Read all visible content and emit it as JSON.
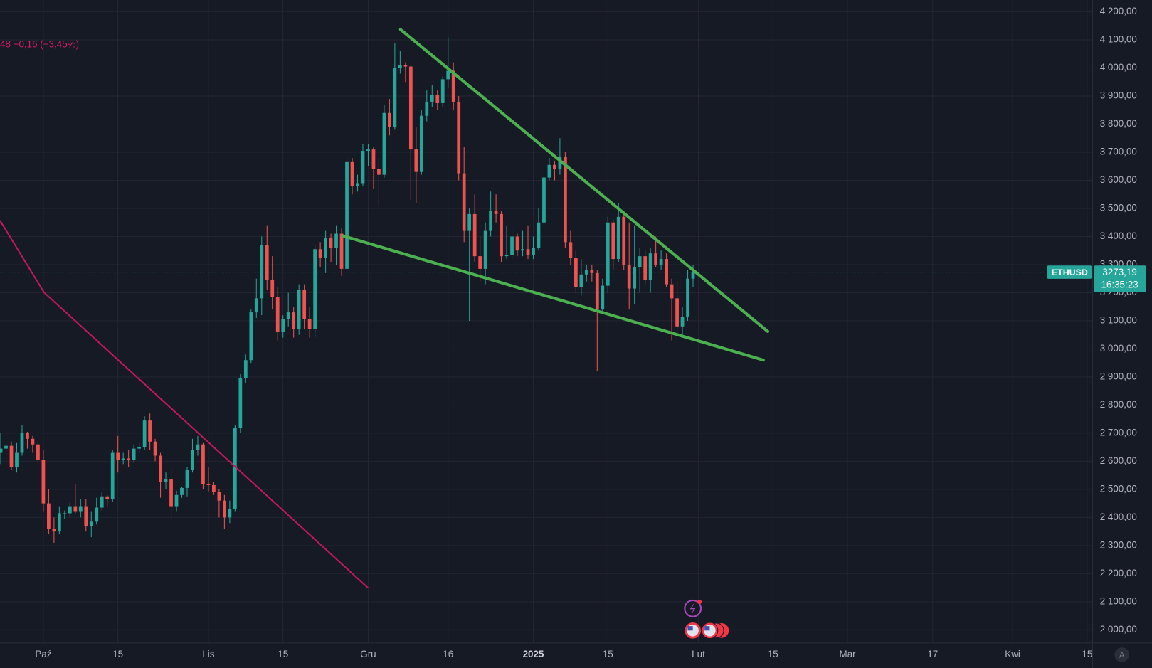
{
  "chart_data": {
    "type": "candlestick",
    "symbol": "ETHUSD",
    "header_text": "48  −0,16 (−3,45%)",
    "countdown": "16:35:23",
    "last_price": {
      "value": 3273.19,
      "label": "3273,19"
    },
    "up_color": "#26a69a",
    "down_color": "#ef5350",
    "x": [
      "2024-09-23",
      "2024-09-24",
      "2024-09-25",
      "2024-09-26",
      "2024-09-27",
      "2024-09-28",
      "2024-09-29",
      "2024-09-30",
      "2024-10-01",
      "2024-10-02",
      "2024-10-03",
      "2024-10-04",
      "2024-10-05",
      "2024-10-06",
      "2024-10-07",
      "2024-10-08",
      "2024-10-09",
      "2024-10-10",
      "2024-10-11",
      "2024-10-12",
      "2024-10-13",
      "2024-10-14",
      "2024-10-15",
      "2024-10-16",
      "2024-10-17",
      "2024-10-18",
      "2024-10-19",
      "2024-10-20",
      "2024-10-21",
      "2024-10-22",
      "2024-10-23",
      "2024-10-24",
      "2024-10-25",
      "2024-10-26",
      "2024-10-27",
      "2024-10-28",
      "2024-10-29",
      "2024-10-30",
      "2024-10-31",
      "2024-11-01",
      "2024-11-02",
      "2024-11-03",
      "2024-11-04",
      "2024-11-05",
      "2024-11-06",
      "2024-11-07",
      "2024-11-08",
      "2024-11-09",
      "2024-11-10",
      "2024-11-11",
      "2024-11-12",
      "2024-11-13",
      "2024-11-14",
      "2024-11-15",
      "2024-11-16",
      "2024-11-17",
      "2024-11-18",
      "2024-11-19",
      "2024-11-20",
      "2024-11-21",
      "2024-11-22",
      "2024-11-23",
      "2024-11-24",
      "2024-11-25",
      "2024-11-26",
      "2024-11-27",
      "2024-11-28",
      "2024-11-29",
      "2024-11-30",
      "2024-12-01",
      "2024-12-02",
      "2024-12-03",
      "2024-12-04",
      "2024-12-05",
      "2024-12-06",
      "2024-12-07",
      "2024-12-08",
      "2024-12-09",
      "2024-12-10",
      "2024-12-11",
      "2024-12-12",
      "2024-12-13",
      "2024-12-14",
      "2024-12-15",
      "2024-12-16",
      "2024-12-17",
      "2024-12-18",
      "2024-12-19",
      "2024-12-20",
      "2024-12-21",
      "2024-12-22",
      "2024-12-23",
      "2024-12-24",
      "2024-12-25",
      "2024-12-26",
      "2024-12-27",
      "2024-12-28",
      "2024-12-29",
      "2024-12-30",
      "2024-12-31",
      "2025-01-01",
      "2025-01-02",
      "2025-01-03",
      "2025-01-04",
      "2025-01-05",
      "2025-01-06",
      "2025-01-07",
      "2025-01-08",
      "2025-01-09",
      "2025-01-10",
      "2025-01-11",
      "2025-01-12",
      "2025-01-13",
      "2025-01-14",
      "2025-01-15",
      "2025-01-16",
      "2025-01-17",
      "2025-01-18",
      "2025-01-19",
      "2025-01-20",
      "2025-01-21",
      "2025-01-22",
      "2025-01-23",
      "2025-01-24",
      "2025-01-25",
      "2025-01-26",
      "2025-01-27",
      "2025-01-28",
      "2025-01-29",
      "2025-01-30",
      "2025-01-31"
    ],
    "open": [
      2630,
      2645,
      2655,
      2580,
      2630,
      2700,
      2680,
      2660,
      2605,
      2450,
      2360,
      2350,
      2415,
      2415,
      2440,
      2420,
      2440,
      2370,
      2385,
      2435,
      2475,
      2465,
      2630,
      2605,
      2610,
      2605,
      2645,
      2650,
      2745,
      2670,
      2620,
      2525,
      2535,
      2440,
      2480,
      2505,
      2570,
      2640,
      2660,
      2520,
      2515,
      2490,
      2460,
      2400,
      2430,
      2720,
      2895,
      2960,
      3130,
      3180,
      3370,
      3245,
      3185,
      3060,
      3105,
      3130,
      3070,
      3210,
      3105,
      3070,
      3355,
      3325,
      3395,
      3360,
      3410,
      3285,
      3665,
      3580,
      3590,
      3705,
      3710,
      3640,
      3620,
      3840,
      3790,
      4000,
      4010,
      4005,
      3710,
      3630,
      3830,
      3880,
      3905,
      3875,
      3960,
      3990,
      3880,
      3625,
      3420,
      3480,
      3330,
      3285,
      3420,
      3490,
      3480,
      3330,
      3335,
      3400,
      3350,
      3355,
      3335,
      3360,
      3450,
      3610,
      3655,
      3640,
      3685,
      3380,
      3325,
      3220,
      3265,
      3280,
      3270,
      3140,
      3225,
      3450,
      3320,
      3470,
      3300,
      3215,
      3290,
      3330,
      3245,
      3340,
      3300,
      3320,
      3230,
      3180,
      3080,
      3115,
      3250
    ],
    "high": [
      2700,
      2675,
      2670,
      2665,
      2730,
      2705,
      2690,
      2665,
      2640,
      2500,
      2400,
      2440,
      2425,
      2455,
      2520,
      2465,
      2465,
      2420,
      2470,
      2490,
      2480,
      2640,
      2690,
      2630,
      2640,
      2660,
      2665,
      2760,
      2770,
      2680,
      2630,
      2560,
      2570,
      2495,
      2510,
      2580,
      2680,
      2690,
      2665,
      2580,
      2525,
      2500,
      2480,
      2460,
      2730,
      2910,
      2980,
      3140,
      3250,
      3400,
      3440,
      3330,
      3220,
      3120,
      3200,
      3150,
      3230,
      3230,
      3150,
      3370,
      3380,
      3420,
      3410,
      3440,
      3430,
      3690,
      3680,
      3620,
      3730,
      3730,
      3720,
      3680,
      3870,
      3890,
      4090,
      4060,
      4020,
      4010,
      3790,
      3850,
      3920,
      3940,
      3920,
      3970,
      4110,
      4020,
      3900,
      3720,
      3500,
      3550,
      3400,
      3450,
      3560,
      3550,
      3490,
      3440,
      3420,
      3410,
      3420,
      3440,
      3400,
      3500,
      3620,
      3680,
      3670,
      3750,
      3700,
      3420,
      3350,
      3320,
      3300,
      3300,
      3280,
      3250,
      3470,
      3460,
      3520,
      3480,
      3450,
      3440,
      3360,
      3350,
      3360,
      3400,
      3350,
      3340,
      3250,
      3240,
      3150,
      3280,
      3300
    ],
    "low": [
      2590,
      2590,
      2570,
      2560,
      2620,
      2645,
      2630,
      2590,
      2420,
      2340,
      2310,
      2340,
      2395,
      2400,
      2415,
      2400,
      2350,
      2330,
      2375,
      2425,
      2440,
      2455,
      2560,
      2590,
      2580,
      2595,
      2630,
      2640,
      2640,
      2600,
      2470,
      2500,
      2390,
      2420,
      2470,
      2475,
      2560,
      2620,
      2500,
      2490,
      2480,
      2400,
      2360,
      2380,
      2420,
      2700,
      2880,
      2950,
      3110,
      3120,
      3210,
      3140,
      3030,
      3040,
      3080,
      3040,
      3050,
      3070,
      3040,
      3040,
      3290,
      3270,
      3310,
      3300,
      3260,
      3280,
      3550,
      3560,
      3580,
      3650,
      3570,
      3510,
      3610,
      3760,
      3780,
      3980,
      3950,
      3530,
      3520,
      3620,
      3810,
      3860,
      3850,
      3860,
      3930,
      3850,
      3600,
      3380,
      3100,
      3310,
      3240,
      3230,
      3400,
      3450,
      3310,
      3320,
      3320,
      3330,
      3330,
      3320,
      3320,
      3350,
      3440,
      3600,
      3600,
      3620,
      3360,
      3300,
      3200,
      3190,
      3240,
      3240,
      2920,
      3130,
      3200,
      3280,
      3310,
      3280,
      3140,
      3160,
      3200,
      3230,
      3200,
      3290,
      3280,
      3220,
      3030,
      3050,
      3050,
      3100,
      3220
    ],
    "close": [
      2645,
      2655,
      2580,
      2630,
      2700,
      2680,
      2660,
      2605,
      2450,
      2360,
      2350,
      2415,
      2415,
      2440,
      2420,
      2440,
      2370,
      2385,
      2435,
      2475,
      2465,
      2630,
      2605,
      2610,
      2605,
      2645,
      2650,
      2745,
      2670,
      2620,
      2525,
      2535,
      2440,
      2480,
      2505,
      2570,
      2640,
      2660,
      2520,
      2515,
      2490,
      2460,
      2400,
      2430,
      2720,
      2895,
      2960,
      3130,
      3180,
      3370,
      3245,
      3185,
      3060,
      3105,
      3130,
      3070,
      3210,
      3105,
      3070,
      3355,
      3325,
      3395,
      3360,
      3410,
      3285,
      3665,
      3580,
      3590,
      3705,
      3710,
      3640,
      3620,
      3840,
      3790,
      4000,
      4010,
      4005,
      3710,
      3630,
      3830,
      3880,
      3905,
      3875,
      3960,
      3990,
      3880,
      3625,
      3420,
      3480,
      3330,
      3285,
      3420,
      3490,
      3480,
      3330,
      3335,
      3400,
      3350,
      3355,
      3335,
      3360,
      3450,
      3610,
      3655,
      3640,
      3685,
      3380,
      3325,
      3220,
      3265,
      3280,
      3270,
      3140,
      3225,
      3450,
      3320,
      3470,
      3300,
      3215,
      3290,
      3330,
      3245,
      3340,
      3300,
      3320,
      3230,
      3180,
      3080,
      3115,
      3250,
      3273.19
    ],
    "xlim": [
      "2024-09-23",
      "2025-04-16"
    ],
    "xticks": [
      {
        "value": "2024-10-01",
        "label": "Paź"
      },
      {
        "value": "2024-10-15",
        "label": "15"
      },
      {
        "value": "2024-11-01",
        "label": "Lis"
      },
      {
        "value": "2024-11-15",
        "label": "15"
      },
      {
        "value": "2024-12-01",
        "label": "Gru"
      },
      {
        "value": "2024-12-16",
        "label": "16"
      },
      {
        "value": "2025-01-01",
        "label": "2025"
      },
      {
        "value": "2025-01-15",
        "label": "15"
      },
      {
        "value": "2025-02-01",
        "label": "Lut"
      },
      {
        "value": "2025-02-15",
        "label": "15"
      },
      {
        "value": "2025-03-01",
        "label": "Mar"
      },
      {
        "value": "2025-03-17",
        "label": "17"
      },
      {
        "value": "2025-04-01",
        "label": "Kwi"
      },
      {
        "value": "2025-04-15",
        "label": "15"
      }
    ],
    "ylim": [
      1953,
      4242
    ],
    "yticks": [
      {
        "value": 2000,
        "label": "2 000,00"
      },
      {
        "value": 2100,
        "label": "2 100,00"
      },
      {
        "value": 2200,
        "label": "2 200,00"
      },
      {
        "value": 2300,
        "label": "2 300,00"
      },
      {
        "value": 2400,
        "label": "2 400,00"
      },
      {
        "value": 2500,
        "label": "2 500,00"
      },
      {
        "value": 2600,
        "label": "2 600,00"
      },
      {
        "value": 2700,
        "label": "2 700,00"
      },
      {
        "value": 2800,
        "label": "2 800,00"
      },
      {
        "value": 2900,
        "label": "2 900,00"
      },
      {
        "value": 3000,
        "label": "3 000,00"
      },
      {
        "value": 3100,
        "label": "3 100,00"
      },
      {
        "value": 3200,
        "label": "3 200,00"
      },
      {
        "value": 3300,
        "label": "3 300,00"
      },
      {
        "value": 3400,
        "label": "3 400,00"
      },
      {
        "value": 3500,
        "label": "3 500,00"
      },
      {
        "value": 3600,
        "label": "3 600,00"
      },
      {
        "value": 3700,
        "label": "3 700,00"
      },
      {
        "value": 3800,
        "label": "3 800,00"
      },
      {
        "value": 3900,
        "label": "3 900,00"
      },
      {
        "value": 4000,
        "label": "4 000,00"
      },
      {
        "value": 4100,
        "label": "4 100,00"
      },
      {
        "value": 4200,
        "label": "4 200,00"
      }
    ],
    "grid": true
  },
  "auto_scale_label": "A"
}
